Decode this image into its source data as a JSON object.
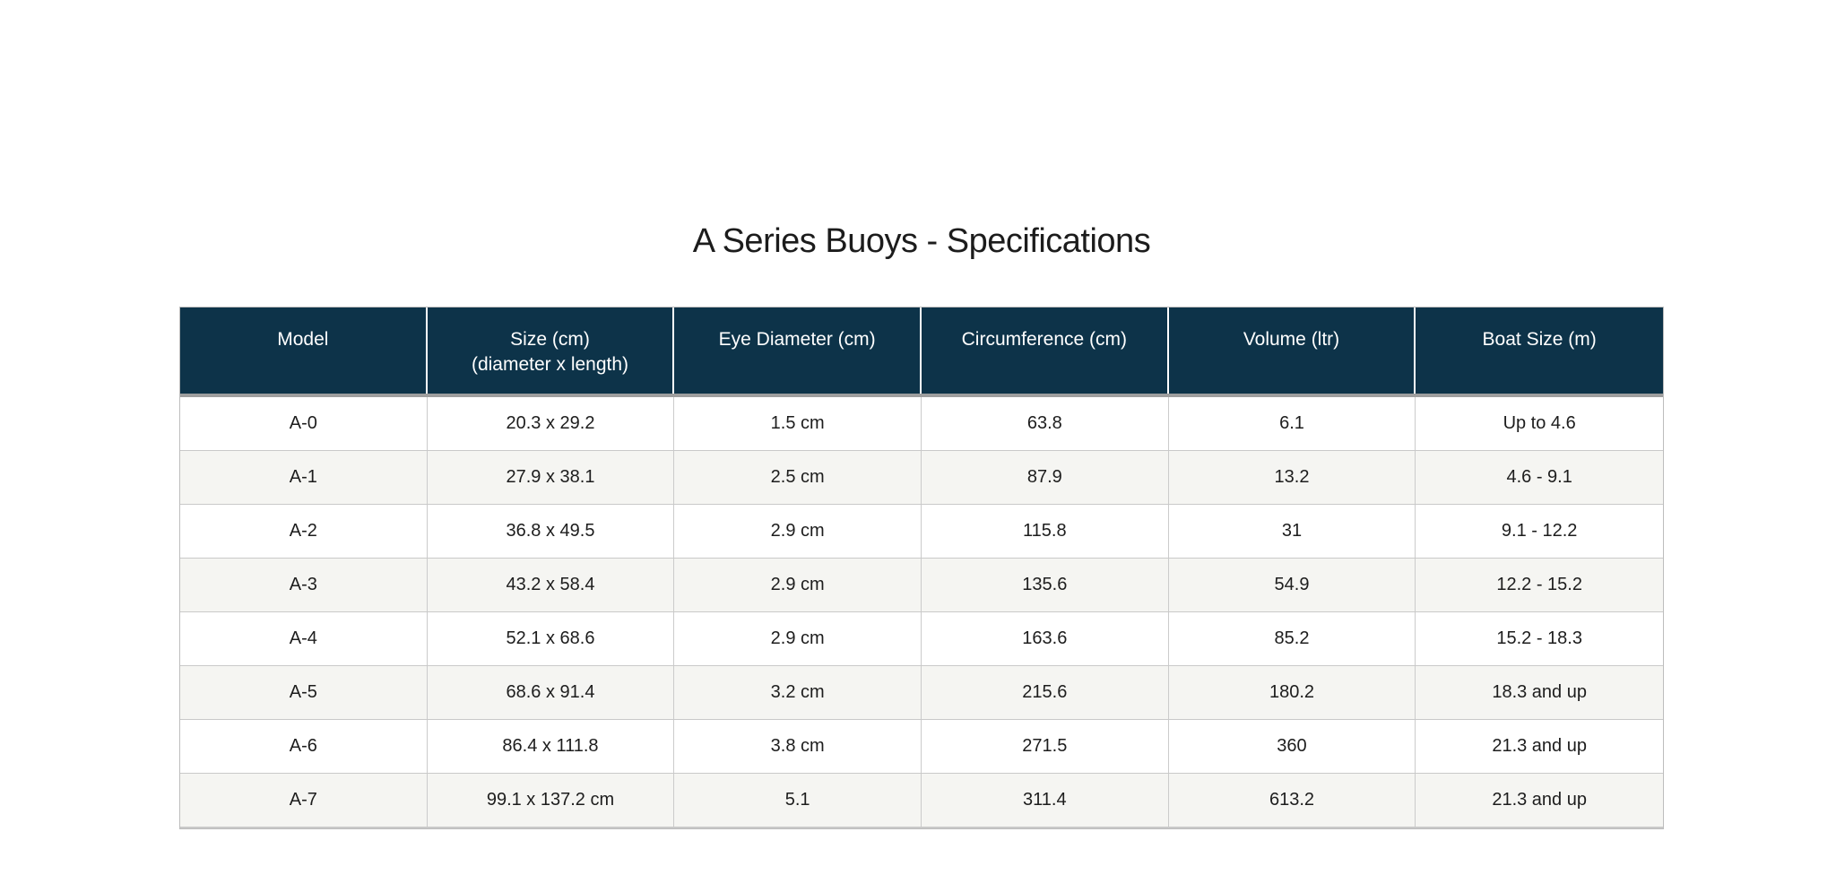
{
  "page": {
    "background": "#ffffff"
  },
  "title": "A Series Buoys - Specifications",
  "colors": {
    "header_bg": "#0d3349",
    "header_text": "#ffffff",
    "row_bg": "#ffffff",
    "row_alt_bg": "#f5f5f2",
    "body_text": "#1d1d1d",
    "grid_line": "#c9c9c9",
    "header_divider": "#ffffff",
    "header_shadow": "#9e9e9e"
  },
  "table": {
    "columns": [
      {
        "label": "Model",
        "sublabel": ""
      },
      {
        "label": "Size (cm)",
        "sublabel": "(diameter x length)"
      },
      {
        "label": "Eye Diameter (cm)",
        "sublabel": ""
      },
      {
        "label": "Circumference (cm)",
        "sublabel": ""
      },
      {
        "label": "Volume (ltr)",
        "sublabel": ""
      },
      {
        "label": "Boat Size (m)",
        "sublabel": ""
      }
    ],
    "rows": [
      {
        "cells": [
          "A-0",
          "20.3 x 29.2",
          "1.5 cm",
          "63.8",
          "6.1",
          "Up to 4.6"
        ]
      },
      {
        "cells": [
          "A-1",
          "27.9 x 38.1",
          "2.5 cm",
          "87.9",
          "13.2",
          "4.6 - 9.1"
        ]
      },
      {
        "cells": [
          "A-2",
          "36.8 x 49.5",
          "2.9 cm",
          "115.8",
          "31",
          "9.1 - 12.2"
        ]
      },
      {
        "cells": [
          "A-3",
          "43.2 x 58.4",
          "2.9 cm",
          "135.6",
          "54.9",
          "12.2 - 15.2"
        ]
      },
      {
        "cells": [
          "A-4",
          "52.1 x 68.6",
          "2.9 cm",
          "163.6",
          "85.2",
          "15.2 - 18.3"
        ]
      },
      {
        "cells": [
          "A-5",
          "68.6 x 91.4",
          "3.2 cm",
          "215.6",
          "180.2",
          "18.3 and up"
        ]
      },
      {
        "cells": [
          "A-6",
          "86.4 x 111.8",
          "3.8 cm",
          "271.5",
          "360",
          "21.3 and up"
        ]
      },
      {
        "cells": [
          "A-7",
          "99.1 x 137.2 cm",
          "5.1",
          "311.4",
          "613.2",
          "21.3 and up"
        ]
      }
    ]
  }
}
